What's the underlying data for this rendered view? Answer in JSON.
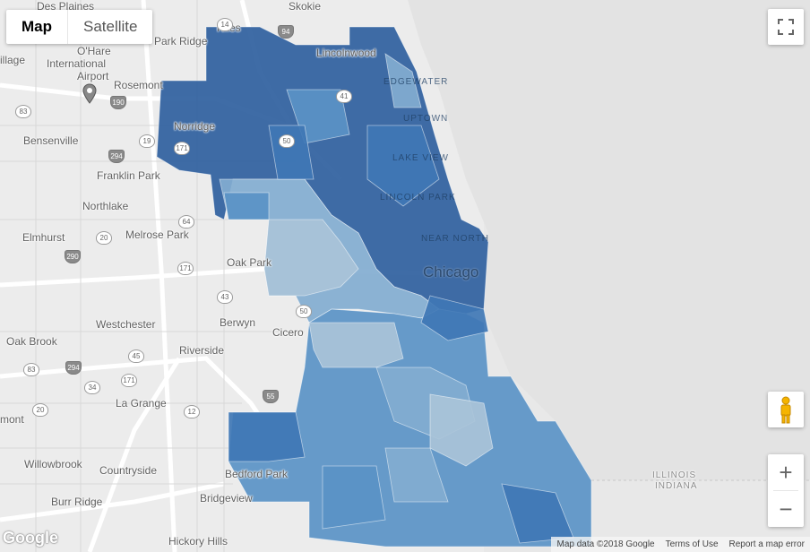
{
  "map_type_control": {
    "map_label": "Map",
    "satellite_label": "Satellite",
    "selected": "Map"
  },
  "controls": {
    "fullscreen_icon": "fullscreen-icon",
    "pegman_icon": "pegman-icon",
    "zoom_in_label": "+",
    "zoom_out_label": "−"
  },
  "branding": {
    "logo_text": "Google"
  },
  "attribution": {
    "map_data": "Map data ©2018 Google",
    "terms": "Terms of Use",
    "report": "Report a map error"
  },
  "places": {
    "des_plaines": "Des Plaines",
    "skokie": "Skokie",
    "niles": "Niles",
    "park_ridge": "Park Ridge",
    "ohare": "O'Hare",
    "ohare_international": "International",
    "ohare_airport": "Airport",
    "rosemont": "Rosemont",
    "lincolnwood": "Lincolnwood",
    "norridge": "Norridge",
    "bensenville": "Bensenville",
    "franklin_park": "Franklin Park",
    "northlake": "Northlake",
    "elmhurst": "Elmhurst",
    "melrose_park": "Melrose Park",
    "oak_park": "Oak Park",
    "chicago": "Chicago",
    "berwyn": "Berwyn",
    "westchester": "Westchester",
    "cicero": "Cicero",
    "oak_brook": "Oak Brook",
    "riverside": "Riverside",
    "la_grange": "La Grange",
    "willowbrook": "Willowbrook",
    "countryside": "Countryside",
    "burr_ridge": "Burr Ridge",
    "bedford_park": "Bedford Park",
    "bridgeview": "Bridgeview",
    "hickory_hills": "Hickory Hills",
    "mont": "mont",
    "illage": "illage",
    "illinois": "ILLINOIS",
    "indiana": "INDIANA"
  },
  "neighborhoods": {
    "edgewater": "EDGEWATER",
    "uptown": "UPTOWN",
    "lake_view": "LAKE VIEW",
    "lincoln_park": "LINCOLN PARK",
    "near_north": "NEAR NORTH"
  },
  "shields": [
    "14",
    "94",
    "190",
    "83",
    "171",
    "294",
    "19",
    "50",
    "41",
    "64",
    "20",
    "290",
    "171",
    "43",
    "50",
    "83",
    "294",
    "34",
    "55",
    "20",
    "45",
    "12",
    "171"
  ],
  "choropleth": {
    "palette": [
      "#c7d3de",
      "#a9c3d8",
      "#82acd0",
      "#5a93c5",
      "#3f77b5",
      "#2f5f9e"
    ],
    "description_levels": 6
  }
}
